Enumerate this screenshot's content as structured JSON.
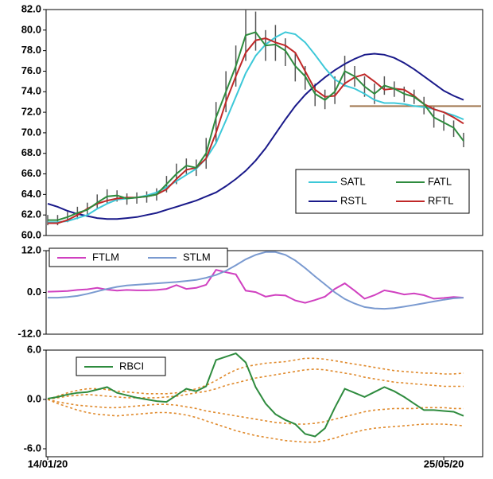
{
  "chart_data": [
    {
      "type": "line",
      "legend": "lower right",
      "ylim": [
        60,
        82
      ],
      "yticks": [
        {
          "value": 60,
          "label": "60.0"
        },
        {
          "value": 62,
          "label": "62.0"
        },
        {
          "value": 64,
          "label": "64.0"
        },
        {
          "value": 66,
          "label": "66.0"
        },
        {
          "value": 68,
          "label": "68.0"
        },
        {
          "value": 70,
          "label": "70.0"
        },
        {
          "value": 72,
          "label": "72.0"
        },
        {
          "value": 74,
          "label": "74.0"
        },
        {
          "value": 76,
          "label": "76.0"
        },
        {
          "value": 78,
          "label": "78.0"
        },
        {
          "value": 80,
          "label": "80.0"
        },
        {
          "value": 82,
          "label": "82.0"
        }
      ],
      "bars": {
        "color": "#555555",
        "high": [
          62.0,
          62.0,
          62.3,
          62.8,
          63.2,
          64.0,
          64.5,
          64.4,
          64.1,
          64.2,
          64.3,
          64.6,
          65.8,
          67.0,
          67.5,
          67.4,
          69.5,
          73.0,
          76.0,
          78.5,
          82.0,
          81.8,
          80.0,
          80.5,
          79.2,
          77.8,
          76.5,
          74.8,
          74.2,
          75.5,
          77.5,
          76.5,
          75.5,
          74.8,
          75.5,
          75.0,
          74.5,
          74.2,
          73.5,
          72.5,
          71.8,
          71.2,
          70.0
        ],
        "low": [
          61.0,
          61.0,
          61.3,
          61.6,
          61.9,
          62.6,
          63.1,
          63.3,
          63.0,
          63.1,
          63.2,
          63.4,
          64.2,
          65.0,
          66.0,
          65.8,
          66.5,
          69.0,
          72.0,
          74.5,
          77.0,
          78.0,
          77.0,
          77.0,
          76.5,
          75.0,
          74.2,
          72.6,
          72.3,
          72.8,
          74.5,
          74.5,
          73.5,
          72.8,
          73.7,
          73.5,
          73.0,
          72.8,
          71.8,
          70.5,
          70.2,
          69.6,
          68.6
        ]
      },
      "hline": {
        "value": 72.6,
        "start": 30.5,
        "color": "#a07850"
      },
      "series": [
        {
          "name": "SATL",
          "color": "#3cc8d8",
          "values": [
            61.3,
            61.3,
            61.4,
            61.7,
            62.0,
            62.6,
            63.1,
            63.5,
            63.6,
            63.7,
            63.9,
            64.2,
            64.7,
            65.3,
            65.9,
            66.5,
            67.5,
            69.0,
            71.2,
            73.5,
            75.8,
            77.5,
            78.6,
            79.3,
            79.8,
            79.6,
            78.8,
            77.6,
            76.3,
            75.2,
            74.6,
            74.3,
            73.8,
            73.2,
            72.9,
            72.9,
            72.8,
            72.6,
            72.5,
            72.3,
            72.0,
            71.7,
            71.3
          ]
        },
        {
          "name": "FATL",
          "color": "#2e8b3e",
          "values": [
            61.5,
            61.5,
            61.8,
            62.2,
            62.5,
            63.2,
            63.8,
            63.9,
            63.6,
            63.7,
            63.8,
            64.0,
            65.0,
            66.0,
            66.8,
            66.6,
            68.0,
            71.5,
            74.0,
            76.5,
            79.5,
            79.8,
            78.5,
            78.6,
            78.0,
            76.5,
            75.5,
            73.8,
            73.2,
            74.0,
            76.0,
            75.5,
            74.5,
            73.8,
            74.6,
            74.3,
            73.8,
            73.5,
            72.8,
            71.5,
            71.0,
            70.5,
            69.2
          ]
        },
        {
          "name": "RSTL",
          "color": "#1a1a8a",
          "values": [
            63.1,
            62.8,
            62.4,
            62.1,
            61.9,
            61.7,
            61.6,
            61.6,
            61.7,
            61.8,
            62.0,
            62.2,
            62.5,
            62.8,
            63.1,
            63.4,
            63.8,
            64.2,
            64.8,
            65.5,
            66.3,
            67.3,
            68.5,
            69.9,
            71.3,
            72.6,
            73.7,
            74.6,
            75.4,
            76.1,
            76.7,
            77.2,
            77.6,
            77.7,
            77.6,
            77.3,
            76.8,
            76.2,
            75.5,
            74.8,
            74.1,
            73.6,
            73.2
          ]
        },
        {
          "name": "RFTL",
          "color": "#c02828",
          "values": [
            61.2,
            61.2,
            61.5,
            62.0,
            62.6,
            63.1,
            63.4,
            63.6,
            63.7,
            63.7,
            63.8,
            64.0,
            64.5,
            65.5,
            66.4,
            66.6,
            67.5,
            70.0,
            73.0,
            75.5,
            77.8,
            79.0,
            79.2,
            78.8,
            78.5,
            77.8,
            76.0,
            74.2,
            73.5,
            73.6,
            74.8,
            75.4,
            75.7,
            75.0,
            74.2,
            74.3,
            74.2,
            73.6,
            72.8,
            72.3,
            72.0,
            71.5,
            70.9
          ]
        }
      ]
    },
    {
      "type": "line",
      "legend": "upper left",
      "ylim": [
        -12,
        12
      ],
      "yticks": [
        {
          "value": -12,
          "label": "-12.0"
        },
        {
          "value": 0,
          "label": "0.0"
        },
        {
          "value": 12,
          "label": "12.0"
        }
      ],
      "series": [
        {
          "name": "FTLM",
          "color": "#d040c0",
          "values": [
            0.2,
            0.3,
            0.4,
            0.7,
            0.9,
            1.3,
            0.8,
            0.5,
            0.7,
            0.6,
            0.6,
            0.7,
            1.0,
            2.1,
            1.0,
            1.3,
            2.2,
            6.5,
            5.8,
            5.2,
            0.5,
            0.1,
            -1.2,
            -0.7,
            -0.9,
            -2.3,
            -3.0,
            -2.2,
            -1.2,
            1.0,
            2.6,
            0.5,
            -1.8,
            -0.8,
            0.6,
            0.1,
            -0.6,
            -0.3,
            -0.8,
            -1.8,
            -1.6,
            -1.3,
            -1.5
          ]
        },
        {
          "name": "STLM",
          "color": "#7a9ad0",
          "values": [
            -1.5,
            -1.5,
            -1.3,
            -1.0,
            -0.4,
            0.3,
            1.0,
            1.6,
            2.0,
            2.2,
            2.4,
            2.6,
            2.8,
            3.0,
            3.3,
            3.6,
            4.2,
            5.0,
            6.2,
            7.8,
            9.5,
            10.8,
            11.6,
            11.6,
            10.8,
            9.2,
            7.0,
            4.6,
            2.3,
            0.0,
            -1.9,
            -3.2,
            -4.2,
            -4.6,
            -4.7,
            -4.5,
            -4.1,
            -3.6,
            -3.1,
            -2.6,
            -2.1,
            -1.7,
            -1.5
          ]
        }
      ]
    },
    {
      "type": "line",
      "legend": "upper left",
      "ylim": [
        -6,
        6
      ],
      "yticks": [
        {
          "value": -6,
          "label": "-6.0"
        },
        {
          "value": 0,
          "label": "0.0"
        },
        {
          "value": 6,
          "label": "6.0"
        }
      ],
      "categories": [
        "14/01/20",
        null,
        null,
        null,
        null,
        null,
        null,
        null,
        null,
        null,
        null,
        null,
        null,
        null,
        null,
        null,
        null,
        null,
        null,
        null,
        null,
        null,
        null,
        null,
        null,
        null,
        null,
        null,
        null,
        null,
        null,
        null,
        null,
        null,
        null,
        null,
        null,
        null,
        null,
        null,
        "25/05/20",
        null,
        null
      ],
      "bands": {
        "color": "#e08a2c",
        "series": [
          [
            0,
            0.4,
            0.8,
            1.1,
            1.3,
            1.3,
            1.2,
            1.0,
            0.9,
            0.8,
            0.7,
            0.7,
            0.7,
            0.8,
            1.0,
            1.3,
            1.7,
            2.3,
            3.0,
            3.6,
            4.0,
            4.2,
            4.4,
            4.5,
            4.6,
            4.8,
            5.0,
            5.0,
            4.9,
            4.7,
            4.5,
            4.3,
            4.1,
            3.9,
            3.7,
            3.5,
            3.4,
            3.3,
            3.2,
            3.2,
            3.1,
            3.1,
            3.2
          ],
          [
            0,
            0.2,
            0.4,
            0.5,
            0.6,
            0.5,
            0.4,
            0.3,
            0.2,
            0.2,
            0.2,
            0.2,
            0.3,
            0.4,
            0.6,
            0.8,
            1.0,
            1.3,
            1.7,
            2.0,
            2.3,
            2.6,
            2.8,
            3.0,
            3.2,
            3.4,
            3.6,
            3.7,
            3.6,
            3.4,
            3.2,
            3.0,
            2.7,
            2.5,
            2.3,
            2.1,
            2.0,
            1.9,
            1.8,
            1.7,
            1.6,
            1.6,
            1.6
          ],
          [
            0,
            -0.3,
            -0.5,
            -0.7,
            -0.8,
            -0.9,
            -1.0,
            -1.0,
            -0.9,
            -0.8,
            -0.7,
            -0.6,
            -0.6,
            -0.7,
            -0.9,
            -1.1,
            -1.4,
            -1.6,
            -1.8,
            -2.0,
            -2.2,
            -2.4,
            -2.6,
            -2.8,
            -2.9,
            -3.0,
            -3.0,
            -2.9,
            -2.7,
            -2.4,
            -2.1,
            -1.8,
            -1.5,
            -1.3,
            -1.2,
            -1.1,
            -1.1,
            -1.1,
            -1.0,
            -1.0,
            -1.0,
            -1.1,
            -1.1
          ],
          [
            0,
            -0.5,
            -0.9,
            -1.3,
            -1.6,
            -1.8,
            -1.9,
            -2.0,
            -1.9,
            -1.8,
            -1.7,
            -1.6,
            -1.6,
            -1.7,
            -1.9,
            -2.2,
            -2.6,
            -3.0,
            -3.4,
            -3.8,
            -4.1,
            -4.4,
            -4.6,
            -4.8,
            -5.0,
            -5.1,
            -5.2,
            -5.2,
            -5.0,
            -4.7,
            -4.3,
            -4.0,
            -3.7,
            -3.5,
            -3.4,
            -3.3,
            -3.2,
            -3.1,
            -3.0,
            -3.0,
            -3.0,
            -3.1,
            -3.2
          ]
        ]
      },
      "series": [
        {
          "name": "RBCI",
          "color": "#2e8b3e",
          "values": [
            0.1,
            0.3,
            0.6,
            0.8,
            0.9,
            1.2,
            1.5,
            0.8,
            0.5,
            0.2,
            0.0,
            -0.2,
            -0.3,
            0.5,
            1.3,
            1.0,
            1.6,
            4.8,
            5.2,
            5.6,
            4.5,
            1.5,
            -0.5,
            -1.8,
            -2.5,
            -3.0,
            -4.2,
            -4.5,
            -3.5,
            -1.0,
            1.3,
            0.8,
            0.3,
            0.9,
            1.5,
            1.0,
            0.3,
            -0.5,
            -1.3,
            -1.3,
            -1.4,
            -1.5,
            -2.0
          ]
        }
      ]
    }
  ]
}
